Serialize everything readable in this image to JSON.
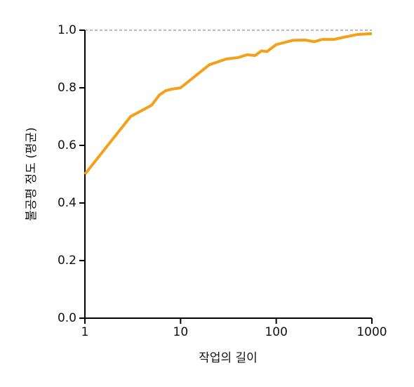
{
  "chart_data": {
    "type": "line",
    "xlabel": "작업의 길이",
    "ylabel": "불공평 정도 (평균)",
    "x": [
      1,
      3,
      5,
      6,
      7,
      8,
      10,
      20,
      30,
      40,
      50,
      60,
      70,
      80,
      100,
      150,
      200,
      250,
      300,
      400,
      500,
      700,
      1000
    ],
    "values": [
      0.5,
      0.7,
      0.74,
      0.775,
      0.79,
      0.795,
      0.8,
      0.88,
      0.9,
      0.905,
      0.915,
      0.912,
      0.928,
      0.926,
      0.95,
      0.965,
      0.966,
      0.96,
      0.968,
      0.968,
      0.975,
      0.985,
      0.988
    ],
    "color": "#f5a01a",
    "xscale": "log",
    "xlim": [
      1,
      1000
    ],
    "xticks": [
      1,
      10,
      100,
      1000
    ],
    "ylim": [
      0,
      1
    ],
    "yticks": [
      {
        "value": 0,
        "label": "0.0"
      },
      0.2,
      0.4,
      0.6,
      0.8,
      {
        "value": 1,
        "label": "1.0"
      }
    ],
    "hline": 1
  }
}
